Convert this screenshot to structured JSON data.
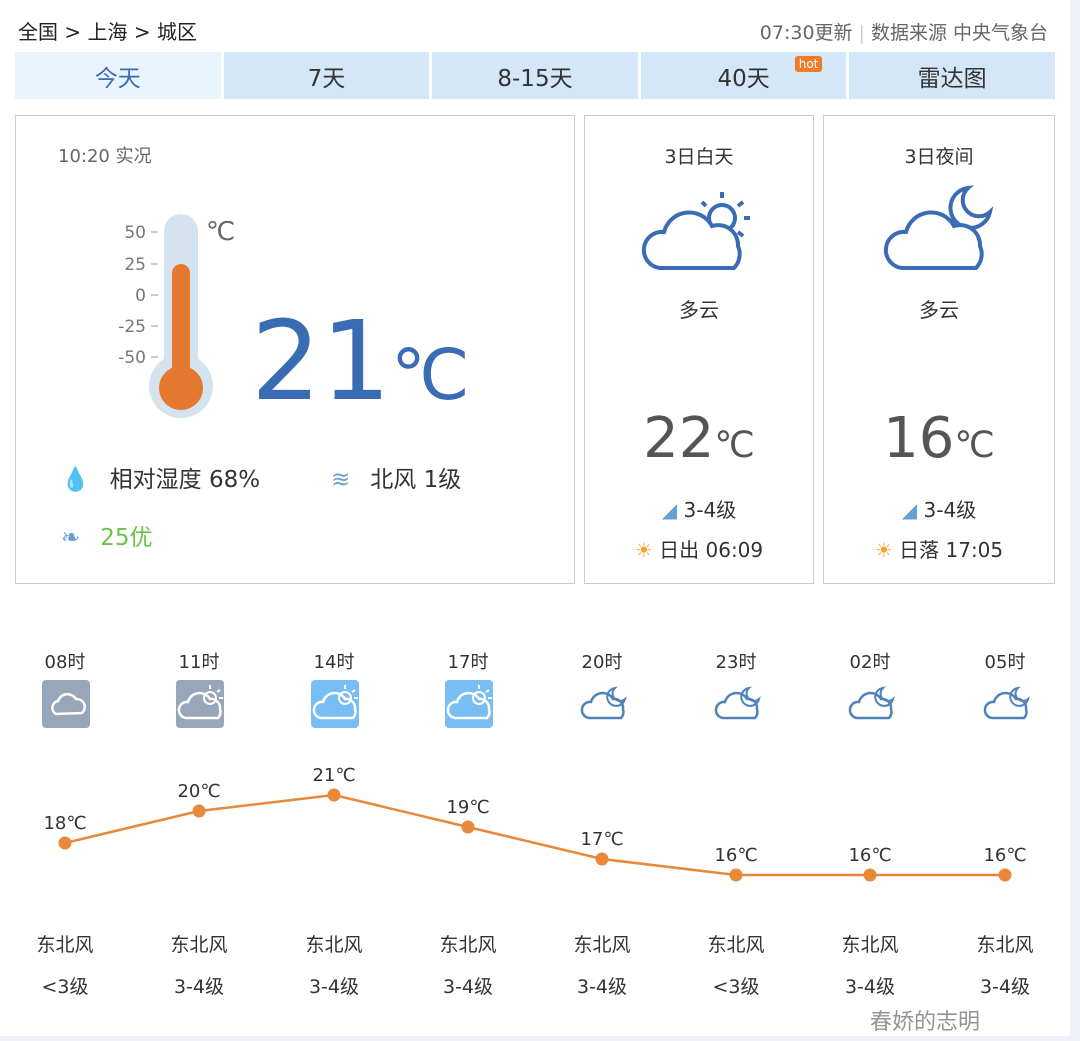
{
  "breadcrumb": {
    "country": "全国",
    "sep": ">",
    "city": "上海",
    "district": "城区"
  },
  "header": {
    "updated": "07:30更新",
    "source": "数据来源 中央气象台"
  },
  "tabs": [
    {
      "label": "今天",
      "active": true
    },
    {
      "label": "7天"
    },
    {
      "label": "8-15天"
    },
    {
      "label": "40天",
      "badge": "hot"
    },
    {
      "label": "雷达图"
    }
  ],
  "current": {
    "time": "10:20 实况",
    "temp": "21",
    "unit": "℃",
    "thermo_unit": "℃",
    "scale": [
      "50",
      "25",
      "0",
      "-25",
      "-50"
    ],
    "humidity_label": "相对湿度",
    "humidity": "68%",
    "wind_dir": "北风",
    "wind_level": "1级",
    "aqi": "25优"
  },
  "day": {
    "title": "3日白天",
    "weather": "多云",
    "temp": "22",
    "unit": "℃",
    "wind": "3-4级",
    "sun": "日出 06:09",
    "icon": "partly-cloudy-day-icon"
  },
  "night": {
    "title": "3日夜间",
    "weather": "多云",
    "temp": "16",
    "unit": "℃",
    "wind": "3-4级",
    "sun": "日落 17:05",
    "icon": "partly-cloudy-night-icon"
  },
  "hourly": [
    {
      "time": "08时",
      "temp": 18,
      "label": "18℃",
      "wind_dir": "东北风",
      "wind_level": "<3级",
      "icon": "cloudy"
    },
    {
      "time": "11时",
      "temp": 20,
      "label": "20℃",
      "wind_dir": "东北风",
      "wind_level": "3-4级",
      "icon": "partly-cloudy-gray"
    },
    {
      "time": "14时",
      "temp": 21,
      "label": "21℃",
      "wind_dir": "东北风",
      "wind_level": "3-4级",
      "icon": "partly-cloudy-blue"
    },
    {
      "time": "17时",
      "temp": 19,
      "label": "19℃",
      "wind_dir": "东北风",
      "wind_level": "3-4级",
      "icon": "partly-cloudy-blue"
    },
    {
      "time": "20时",
      "temp": 17,
      "label": "17℃",
      "wind_dir": "东北风",
      "wind_level": "3-4级",
      "icon": "cloudy-night"
    },
    {
      "time": "23时",
      "temp": 16,
      "label": "16℃",
      "wind_dir": "东北风",
      "wind_level": "<3级",
      "icon": "cloudy-night"
    },
    {
      "time": "02时",
      "temp": 16,
      "label": "16℃",
      "wind_dir": "东北风",
      "wind_level": "3-4级",
      "icon": "cloudy-night"
    },
    {
      "time": "05时",
      "temp": 16,
      "label": "16℃",
      "wind_dir": "东北风",
      "wind_level": "3-4级",
      "icon": "cloudy-night"
    }
  ],
  "watermark": "春娇的志明",
  "colors": {
    "accent": "#3a6cb4",
    "line": "#e8883a",
    "tab": "#d3e7f9",
    "aqi": "#6cc24a"
  }
}
